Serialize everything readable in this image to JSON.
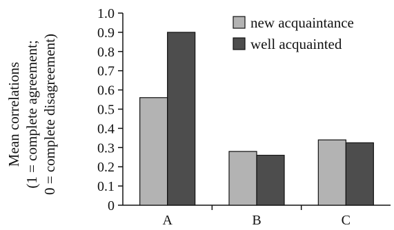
{
  "chart_data": {
    "type": "bar",
    "categories": [
      "A",
      "B",
      "C"
    ],
    "series": [
      {
        "name": "new acquaintance",
        "values": [
          0.56,
          0.28,
          0.34
        ],
        "color": "#b3b3b3"
      },
      {
        "name": "well acquainted",
        "values": [
          0.9,
          0.26,
          0.325
        ],
        "color": "#4d4d4d"
      }
    ],
    "ylabel_lines": [
      "Mean correlations",
      "(1 = complete agreement;",
      "0 = complete disagreement)"
    ],
    "xlabel": "",
    "ylim": [
      0,
      1.0
    ],
    "yticks": [
      "0",
      "0.1",
      "0.2",
      "0.3",
      "0.4",
      "0.5",
      "0.6",
      "0.7",
      "0.8",
      "0.9",
      "1.0"
    ],
    "grid": false,
    "legend_position": "top-right"
  }
}
